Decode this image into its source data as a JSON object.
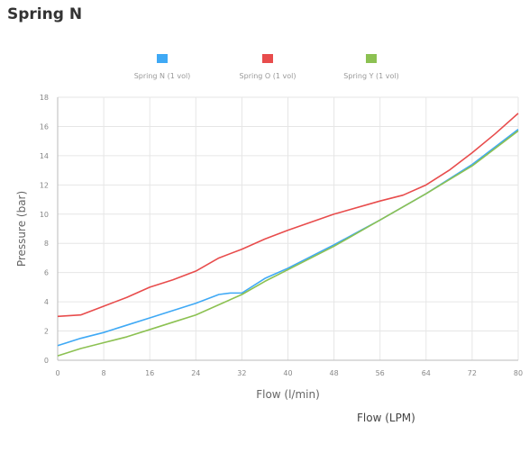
{
  "page_title": "Spring N",
  "footer_caption": "Flow (LPM)",
  "chart_data": {
    "type": "line",
    "title": "",
    "xlabel": "Flow (l/min)",
    "ylabel": "Pressure (bar)",
    "xlim": [
      0,
      80
    ],
    "ylim": [
      0,
      18
    ],
    "grid": true,
    "legend": "top-center",
    "x_ticks": [
      "0",
      "8",
      "16",
      "24",
      "32",
      "40",
      "48",
      "56",
      "64",
      "72",
      "80"
    ],
    "y_ticks": [
      "0",
      "2",
      "4",
      "6",
      "8",
      "10",
      "12",
      "14",
      "16",
      "18"
    ],
    "series": [
      {
        "name": "Spring N (1 vol)",
        "color": "#3fa9f5",
        "x": [
          0,
          4,
          8,
          12,
          16,
          20,
          24,
          28,
          30,
          32,
          36,
          40,
          48,
          56,
          64,
          72,
          80
        ],
        "y": [
          1.0,
          1.5,
          1.9,
          2.4,
          2.9,
          3.4,
          3.9,
          4.5,
          4.6,
          4.6,
          5.6,
          6.3,
          7.9,
          9.6,
          11.4,
          13.4,
          15.8
        ]
      },
      {
        "name": "Spring O (1 vol)",
        "color": "#e84c4c",
        "x": [
          0,
          4,
          8,
          12,
          16,
          20,
          24,
          28,
          32,
          36,
          40,
          48,
          56,
          60,
          64,
          68,
          72,
          76,
          80
        ],
        "y": [
          3.0,
          3.1,
          3.7,
          4.3,
          5.0,
          5.5,
          6.1,
          7.0,
          7.6,
          8.3,
          8.9,
          10.0,
          10.9,
          11.3,
          12.0,
          13.0,
          14.2,
          15.5,
          16.9
        ]
      },
      {
        "name": "Spring Y (1 vol)",
        "color": "#8cc152",
        "x": [
          0,
          4,
          8,
          12,
          16,
          20,
          24,
          28,
          32,
          36,
          40,
          48,
          56,
          64,
          72,
          80
        ],
        "y": [
          0.3,
          0.8,
          1.2,
          1.6,
          2.1,
          2.6,
          3.1,
          3.8,
          4.5,
          5.4,
          6.2,
          7.8,
          9.6,
          11.4,
          13.3,
          15.7
        ]
      }
    ]
  }
}
